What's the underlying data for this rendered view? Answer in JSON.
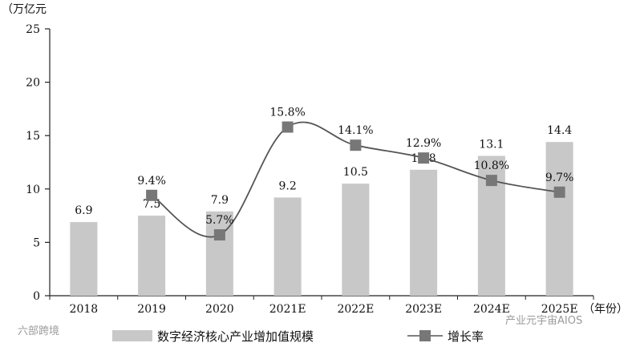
{
  "chart_data": {
    "type": "bar",
    "y_unit_label": "（万亿元",
    "x_unit_label": "（年份）",
    "categories": [
      "2018",
      "2019",
      "2020",
      "2021E",
      "2022E",
      "2023E",
      "2024E",
      "2025E"
    ],
    "ylim": [
      0,
      25
    ],
    "yticks": [
      "0",
      "5",
      "10",
      "15",
      "20",
      "25"
    ],
    "series": [
      {
        "name": "数字经济核心产业增加值规模",
        "type": "bar",
        "color": "#c8c8c8",
        "values": [
          6.9,
          7.5,
          7.9,
          9.2,
          10.5,
          11.8,
          13.1,
          14.4
        ],
        "labels": [
          "6.9",
          "7.5",
          "7.9",
          "9.2",
          "10.5",
          "11.8",
          "13.1",
          "14.4"
        ]
      },
      {
        "name": "增长率",
        "type": "line",
        "color": "#555555",
        "marker_color": "#777777",
        "values": [
          null,
          9.4,
          5.7,
          15.8,
          14.1,
          12.9,
          10.8,
          9.7
        ],
        "labels": [
          "",
          "9.4%",
          "5.7%",
          "15.8%",
          "14.1%",
          "12.9%",
          "10.8%",
          "9.7%"
        ]
      }
    ],
    "legend": {
      "position": "bottom",
      "items": [
        "数字经济核心产业增加值规模",
        "增长率"
      ]
    },
    "grid": false
  },
  "watermarks": [
    "六部跨境",
    "产业元宇宙AIOS"
  ]
}
